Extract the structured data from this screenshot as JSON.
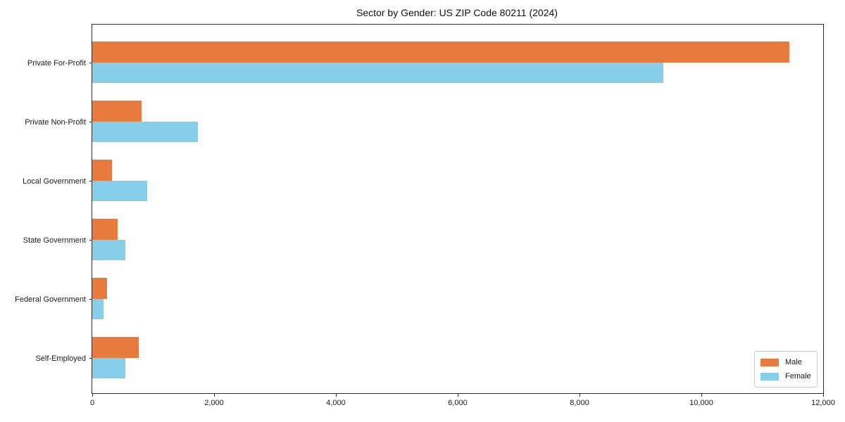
{
  "chart_data": {
    "type": "bar",
    "orientation": "horizontal",
    "title": "Sector by Gender: US ZIP Code 80211 (2024)",
    "categories": [
      "Private For-Profit",
      "Private Non-Profit",
      "Local Government",
      "State Government",
      "Federal Government",
      "Self-Employed"
    ],
    "series": [
      {
        "name": "Male",
        "color": "#E97A3D",
        "values": [
          11450,
          810,
          320,
          420,
          240,
          765
        ]
      },
      {
        "name": "Female",
        "color": "#87CEEB",
        "values": [
          9380,
          1730,
          900,
          540,
          185,
          540
        ]
      }
    ],
    "xlabel": "",
    "ylabel": "",
    "xlim": [
      0,
      12000
    ],
    "x_ticks": [
      0,
      2000,
      4000,
      6000,
      8000,
      10000,
      12000
    ],
    "x_tick_labels": [
      "0",
      "2,000",
      "4,000",
      "6,000",
      "8,000",
      "10,000",
      "12,000"
    ],
    "grid": false,
    "legend": {
      "position": "lower right",
      "entries": [
        "Male",
        "Female"
      ]
    }
  },
  "colors": {
    "male": "#E97A3D",
    "female": "#87CEEB",
    "axis": "#2b2b2b",
    "legend_border": "#cccccc",
    "background": "#ffffff"
  }
}
